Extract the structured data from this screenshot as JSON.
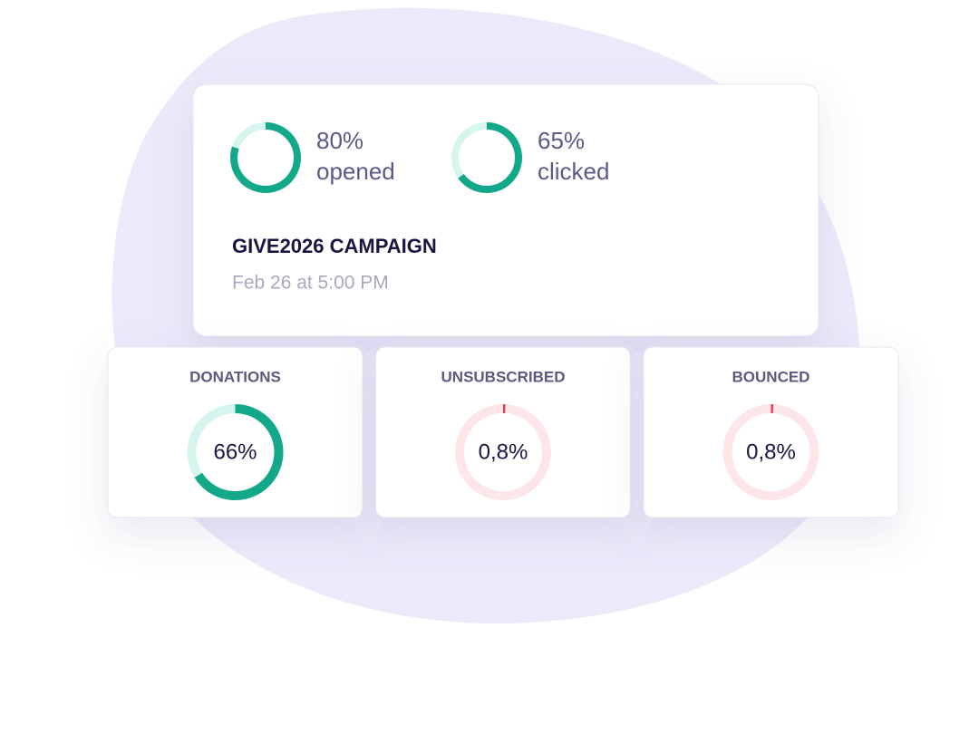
{
  "campaign": {
    "stats": [
      {
        "value": 80,
        "label": "80%",
        "caption": "opened",
        "color": "#13a88a",
        "track": "#d6f5ef"
      },
      {
        "value": 65,
        "label": "65%",
        "caption": "clicked",
        "color": "#13a88a",
        "track": "#d6f5ef"
      }
    ],
    "title": "GIVE2026 CAMPAIGN",
    "date": "Feb 26 at 5:00 PM"
  },
  "metrics": [
    {
      "name": "DONATIONS",
      "value": 66,
      "label": "66%",
      "color": "#13a88a",
      "track": "#d6f5ef"
    },
    {
      "name": "UNSUBSCRIBED",
      "value": 0.8,
      "label": "0,8%",
      "color": "#f0374a",
      "track": "#fde6e8"
    },
    {
      "name": "BOUNCED",
      "value": 0.8,
      "label": "0,8%",
      "color": "#f0374a",
      "track": "#fde6e8"
    }
  ]
}
